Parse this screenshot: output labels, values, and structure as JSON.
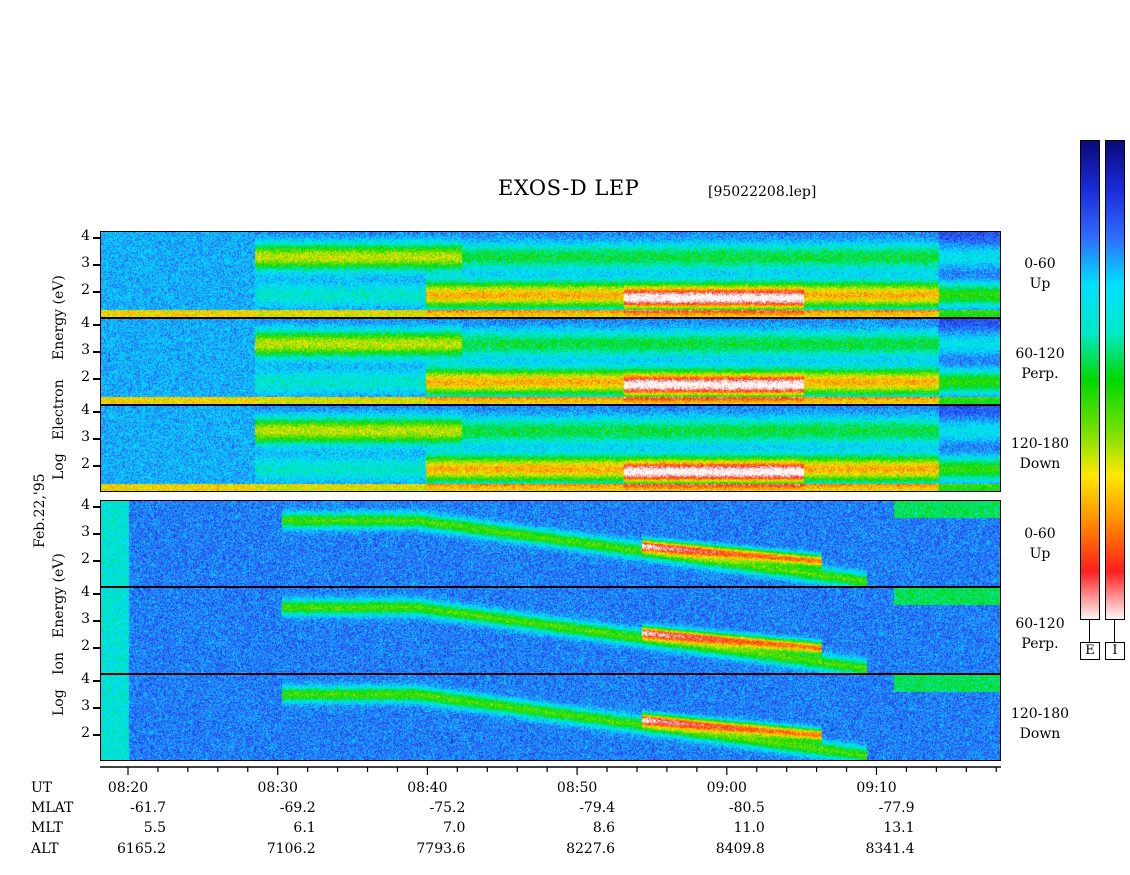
{
  "header": {
    "title": "EXOS-D LEP",
    "file": "[95022208.lep]"
  },
  "date_label": "Feb.22,'95",
  "electron": {
    "ylabel_line1": "Log",
    "ylabel_line2": "Electron",
    "ylabel_line3": "Energy (eV)"
  },
  "ion": {
    "ylabel_line1": "Log",
    "ylabel_line2": "Ion",
    "ylabel_line3": "Energy (eV)"
  },
  "panels_right": [
    {
      "angle": "0-60",
      "dir": "Up"
    },
    {
      "angle": "60-120",
      "dir": "Perp."
    },
    {
      "angle": "120-180",
      "dir": "Down"
    },
    {
      "angle": "0-60",
      "dir": "Up"
    },
    {
      "angle": "60-120",
      "dir": "Perp."
    },
    {
      "angle": "120-180",
      "dir": "Down"
    }
  ],
  "colorbars": [
    {
      "label": "E"
    },
    {
      "label": "I"
    }
  ],
  "colorscale": [
    "#fff6f6",
    "#ff1e1e",
    "#ff8a00",
    "#ffe800",
    "#6ee000",
    "#00d800",
    "#00e8c8",
    "#00e0ff",
    "#2f6bff",
    "#1a2ad8",
    "#0a0a7a"
  ],
  "yticks": [
    "4",
    "3",
    "2"
  ],
  "xaxis": {
    "row_labels": [
      "UT",
      "MLAT",
      "MLT",
      "ALT"
    ],
    "columns": [
      {
        "ut": "08:20",
        "mlat": "-61.7",
        "mlt": "5.5",
        "alt": "6165.2"
      },
      {
        "ut": "08:30",
        "mlat": "-69.2",
        "mlt": "6.1",
        "alt": "7106.2"
      },
      {
        "ut": "08:40",
        "mlat": "-75.2",
        "mlt": "7.0",
        "alt": "7793.6"
      },
      {
        "ut": "08:50",
        "mlat": "-79.4",
        "mlt": "8.6",
        "alt": "8227.6"
      },
      {
        "ut": "09:00",
        "mlat": "-80.5",
        "mlt": "11.0",
        "alt": "8409.8"
      },
      {
        "ut": "09:10",
        "mlat": "-77.9",
        "mlt": "13.1",
        "alt": "8341.4"
      }
    ]
  },
  "chart_data": {
    "type": "heatmap",
    "title": "EXOS-D LEP",
    "x_range_ut": [
      "08:16",
      "09:18"
    ],
    "y_range_log_energy": [
      1,
      4.2
    ],
    "ylabel": "Log Energy (eV)",
    "panels": [
      {
        "species": "Electron",
        "pitch_angle": "0-60",
        "direction": "Up"
      },
      {
        "species": "Electron",
        "pitch_angle": "60-120",
        "direction": "Perp."
      },
      {
        "species": "Electron",
        "pitch_angle": "120-180",
        "direction": "Down"
      },
      {
        "species": "Ion",
        "pitch_angle": "0-60",
        "direction": "Up"
      },
      {
        "species": "Ion",
        "pitch_angle": "60-120",
        "direction": "Perp."
      },
      {
        "species": "Ion",
        "pitch_angle": "120-180",
        "direction": "Down"
      }
    ],
    "colorbars": [
      "E",
      "I"
    ]
  }
}
